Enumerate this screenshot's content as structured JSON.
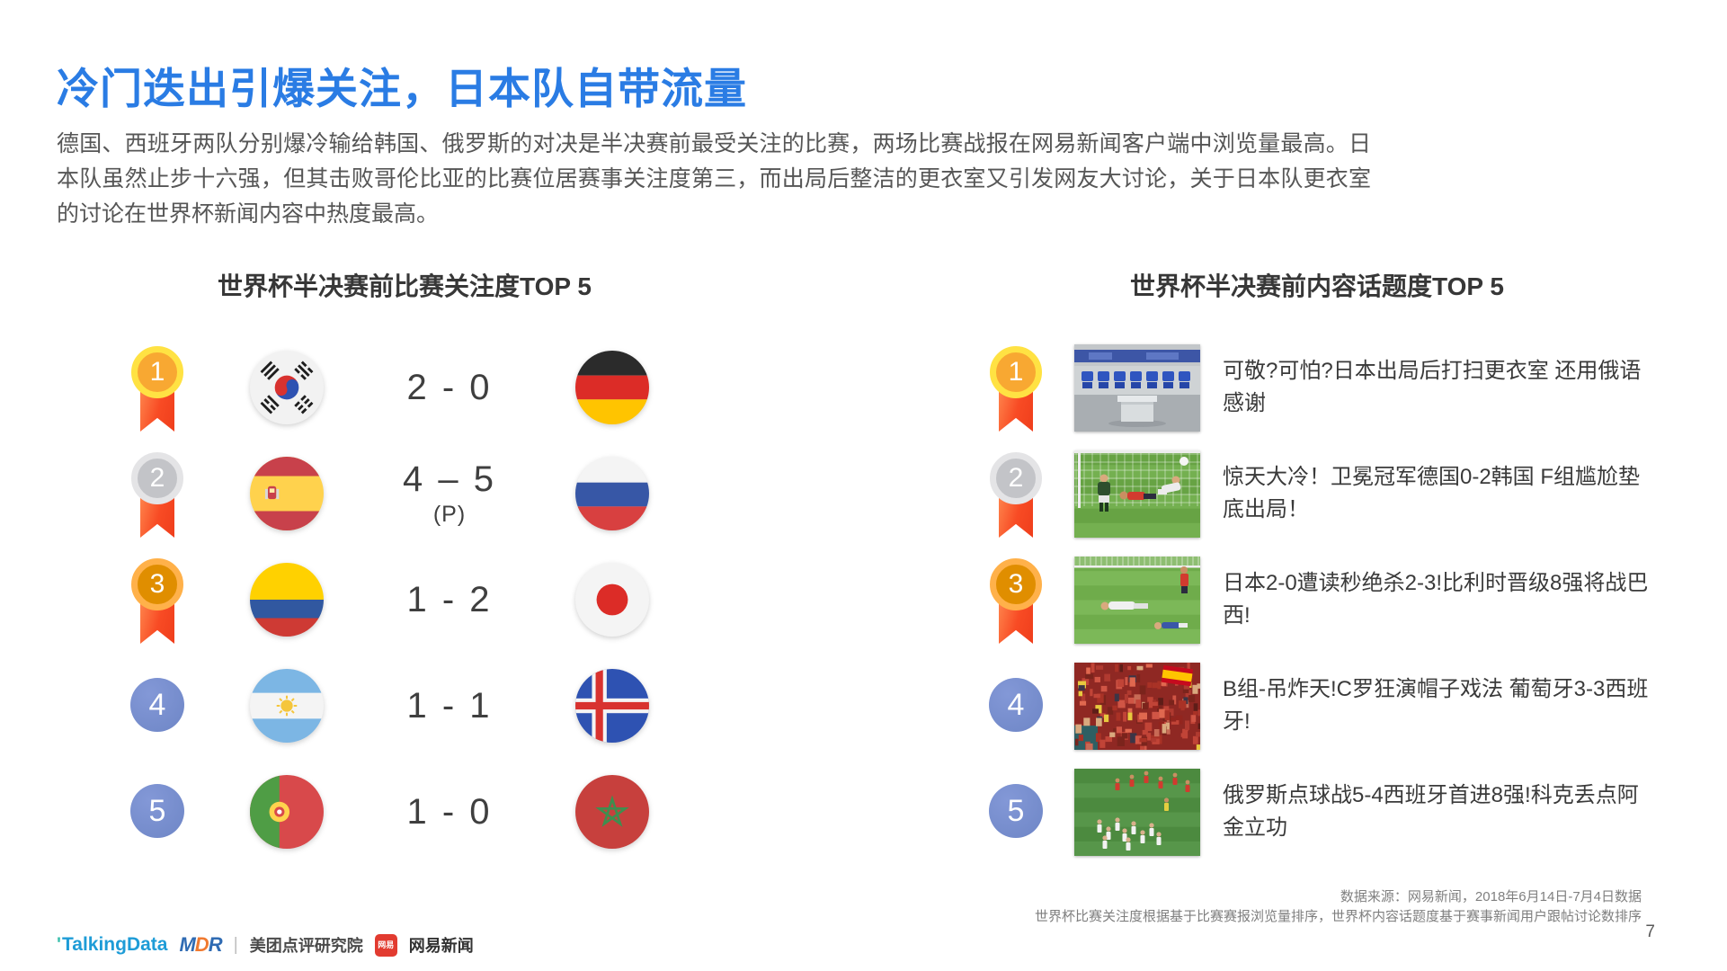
{
  "slide": {
    "title": "冷门迭出引爆关注，日本队自带流量",
    "body": "德国、西班牙两队分别爆冷输给韩国、俄罗斯的对决是半决赛前最受关注的比赛，两场比赛战报在网易新闻客户端中浏览量最高。日本队虽然止步十六强，但其击败哥伦比亚的比赛位居赛事关注度第三，而出局后整洁的更衣室又引发网友大讨论，关于日本队更衣室的讨论在世界杯新闻内容中热度最高。",
    "page_number": "7"
  },
  "left_panel": {
    "title": "世界杯半决赛前比赛关注度TOP 5",
    "rows": [
      {
        "rank": "1",
        "rank_style": "gold",
        "home_flag": "south-korea",
        "score": "2 - 0",
        "score_note": "",
        "away_flag": "germany"
      },
      {
        "rank": "2",
        "rank_style": "silver",
        "home_flag": "spain",
        "score": "4 – 5",
        "score_note": "(P)",
        "away_flag": "russia"
      },
      {
        "rank": "3",
        "rank_style": "bronze",
        "home_flag": "colombia",
        "score": "1 - 2",
        "score_note": "",
        "away_flag": "japan"
      },
      {
        "rank": "4",
        "rank_style": "blue",
        "home_flag": "argentina",
        "score": "1 - 1",
        "score_note": "",
        "away_flag": "iceland"
      },
      {
        "rank": "5",
        "rank_style": "blue",
        "home_flag": "portugal",
        "score": "1 - 0",
        "score_note": "",
        "away_flag": "morocco"
      }
    ]
  },
  "right_panel": {
    "title": "世界杯半决赛前内容话题度TOP 5",
    "rows": [
      {
        "rank": "1",
        "rank_style": "gold",
        "thumbnail": "locker-room",
        "headline": "可敬?可怕?日本出局后打扫更衣室 还用俄语感谢"
      },
      {
        "rank": "2",
        "rank_style": "silver",
        "thumbnail": "goal-scramble",
        "headline": "惊天大冷！卫冕冠军德国0-2韩国 F组尴尬垫底出局！"
      },
      {
        "rank": "3",
        "rank_style": "bronze",
        "thumbnail": "pitch-despair",
        "headline": "日本2-0遭读秒绝杀2-3!比利时晋级8强将战巴西!"
      },
      {
        "rank": "4",
        "rank_style": "blue",
        "thumbnail": "red-crowd",
        "headline": "B组-吊炸天!C罗狂演帽子戏法 葡萄牙3-3西班牙!"
      },
      {
        "rank": "5",
        "rank_style": "blue",
        "thumbnail": "penalty-celebration",
        "headline": "俄罗斯点球战5-4西班牙首进8强!科克丢点阿金立功"
      }
    ]
  },
  "footer": {
    "source_line1": "数据来源：网易新闻，2018年6月14日-7月4日数据",
    "source_line2": "世界杯比赛关注度根据基于比赛赛报浏览量排序，世界杯内容话题度基于赛事新闻用户跟帖讨论数排序",
    "logos": {
      "talkingdata": "TalkingData",
      "mdr_mark": "MDR",
      "institute": "美团点评研究院",
      "netease_badge": "网易",
      "netease": "网易新闻"
    }
  },
  "colors": {
    "title_blue": "#2A7CE4",
    "medal_gold_ring": "#FFE243",
    "medal_gold_fill": "#F8A832",
    "medal_silver_ring": "#E4E4E6",
    "medal_silver_fill": "#C3C4C8",
    "medal_bronze_ring": "#FFB14A",
    "medal_bronze_fill": "#E08E00",
    "rank_blue": "#7289CA",
    "ribbon_red": "#F84B24"
  }
}
